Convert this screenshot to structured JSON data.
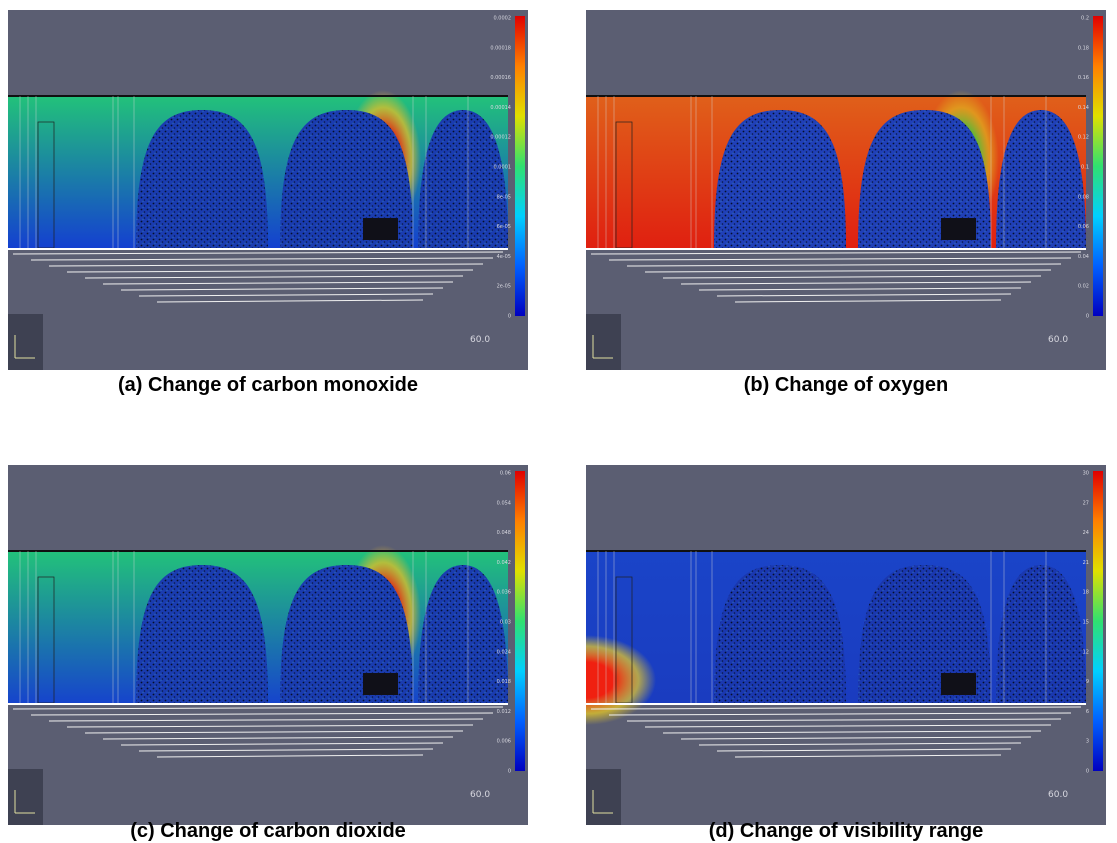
{
  "panels": [
    {
      "caption": "(a) Change of carbon monoxide",
      "time": "60.0",
      "colorbar_labels": [
        "0.0002",
        "0.00018",
        "0.00016",
        "0.00014",
        "0.00012",
        "0.0001",
        "8e-05",
        "6e-05",
        "4e-05",
        "2e-05",
        "0"
      ]
    },
    {
      "caption": "(b) Change of oxygen",
      "time": "60.0",
      "colorbar_labels": [
        "0.2",
        "0.18",
        "0.16",
        "0.14",
        "0.12",
        "0.1",
        "0.08",
        "0.06",
        "0.04",
        "0.02",
        "0"
      ]
    },
    {
      "caption": "(c) Change of carbon dioxide",
      "time": "60.0",
      "colorbar_labels": [
        "0.06",
        "0.054",
        "0.048",
        "0.042",
        "0.036",
        "0.03",
        "0.024",
        "0.018",
        "0.012",
        "0.006",
        "0"
      ]
    },
    {
      "caption": "(d) Change of visibility range",
      "time": "60.0",
      "colorbar_labels": [
        "30",
        "27",
        "24",
        "21",
        "18",
        "15",
        "12",
        "9",
        "6",
        "3",
        "0"
      ]
    }
  ]
}
